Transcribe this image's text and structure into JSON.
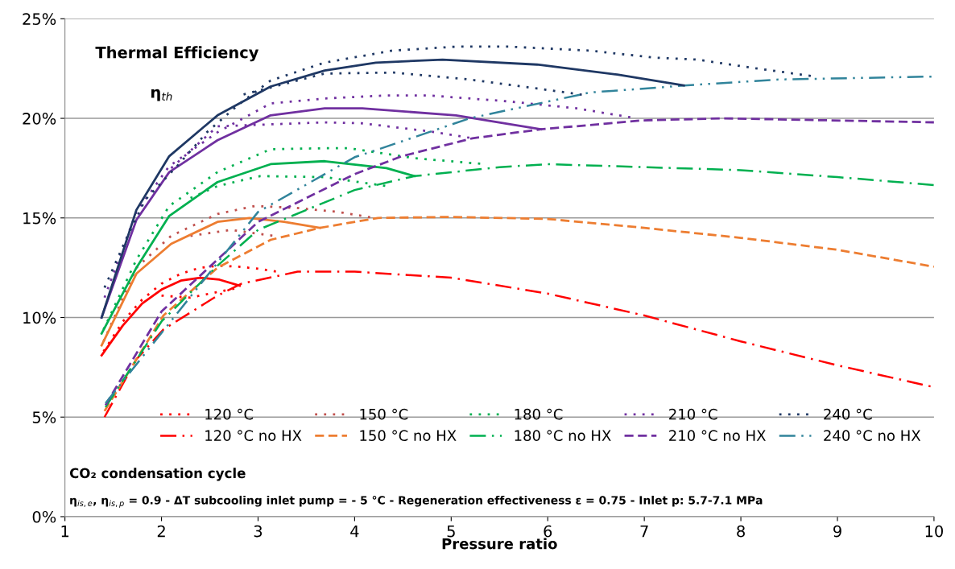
{
  "chart_data": {
    "type": "line",
    "title": "Thermal Efficiency",
    "subtitle": "η$_{th}$",
    "xlabel": "Pressure ratio",
    "xlim": [
      1,
      10
    ],
    "xticks": [
      1,
      2,
      3,
      4,
      5,
      6,
      7,
      8,
      9,
      10
    ],
    "ylim": [
      0,
      25
    ],
    "yticks": [
      {
        "value": 0,
        "label": "0%"
      },
      {
        "value": 5,
        "label": "5%"
      },
      {
        "value": 10,
        "label": "10%"
      },
      {
        "value": 15,
        "label": "15%"
      },
      {
        "value": 20,
        "label": "20%"
      },
      {
        "value": 25,
        "label": "25%"
      }
    ],
    "grid": "y",
    "legend": "bottom",
    "annotations": [
      "CO₂ condensation cycle",
      "η$_{is,e}$, η$_{is,p}$ = 0.9 - ΔT subcooling inlet pump = - 5 °C - Regeneration effectiveness ε = 0.75 - Inlet p: 5.7-7.1 MPa"
    ],
    "series": [
      {
        "name": "120 °C",
        "color": "#ff0000",
        "line_style": "dotted",
        "x": [
          1.4,
          1.6,
          1.8,
          2.0,
          2.2,
          2.4,
          2.6,
          2.8,
          3.0,
          3.2,
          null,
          2.0,
          2.3,
          2.5,
          2.8
        ],
        "values": [
          8.3,
          9.8,
          10.9,
          11.7,
          12.2,
          12.5,
          12.6,
          12.55,
          12.45,
          12.3,
          null,
          11.1,
          11.0,
          11.2,
          11.5
        ]
      },
      {
        "name": "120 °C no HX",
        "color": "#ff0000",
        "line_style": "dashdot",
        "x": [
          1.41,
          1.74,
          2.02,
          2.58,
          2.83,
          3.41,
          4.0,
          5,
          6,
          7,
          8,
          9,
          10
        ],
        "values": [
          5.0,
          7.9,
          9.4,
          11.1,
          11.7,
          12.3,
          12.3,
          12.0,
          11.2,
          10.1,
          8.8,
          7.6,
          6.5
        ]
      },
      {
        "color": "#ff0000",
        "line_style": "solid",
        "x": [
          1.38,
          1.6,
          1.8,
          2.0,
          2.2,
          2.4,
          2.6,
          2.81
        ],
        "values": [
          8.1,
          9.6,
          10.7,
          11.4,
          11.85,
          12.0,
          11.9,
          11.6
        ]
      },
      {
        "name": "150 °C",
        "color": "#c0504d",
        "line_style": "dotted",
        "x": [
          1.4,
          1.74,
          2.1,
          2.58,
          2.97,
          3.4,
          3.83,
          4.2,
          null,
          2.3,
          2.72,
          3.16
        ],
        "values": [
          8.8,
          12.5,
          14.1,
          15.2,
          15.6,
          15.5,
          15.3,
          15.0,
          null,
          14.1,
          14.4,
          14.1
        ]
      },
      {
        "name": "150 °C no HX",
        "color": "#ed7d31",
        "line_style": "dashed",
        "x": [
          1.41,
          2.02,
          2.58,
          3.13,
          3.64,
          4.24,
          5,
          6,
          7,
          8,
          9,
          10
        ],
        "values": [
          5.3,
          10.1,
          12.5,
          13.9,
          14.5,
          15.0,
          15.05,
          14.95,
          14.5,
          14.0,
          13.4,
          12.55
        ]
      },
      {
        "color": "#ed7d31",
        "line_style": "solid",
        "x": [
          1.38,
          1.74,
          2.1,
          2.58,
          2.91,
          3.27,
          3.64
        ],
        "values": [
          8.6,
          12.2,
          13.7,
          14.8,
          15.0,
          14.8,
          14.5
        ]
      },
      {
        "name": "180 °C",
        "color": "#00b050",
        "line_style": "dotted",
        "x": [
          1.4,
          1.74,
          2.08,
          2.58,
          3.13,
          3.69,
          3.94,
          4.62,
          5.35,
          null,
          2.3,
          2.58,
          3.02,
          3.69,
          4.33
        ],
        "values": [
          9.4,
          12.9,
          15.6,
          17.3,
          18.45,
          18.5,
          18.5,
          18.0,
          17.7,
          null,
          16.0,
          16.6,
          17.1,
          17.05,
          16.6
        ]
      },
      {
        "name": "180 °C no HX",
        "color": "#00b050",
        "line_style": "dashdot",
        "x": [
          1.42,
          2.0,
          2.58,
          3.0,
          4.0,
          4.62,
          5.5,
          6,
          7,
          8,
          9,
          10
        ],
        "values": [
          5.5,
          9.8,
          12.6,
          14.4,
          16.4,
          17.1,
          17.55,
          17.7,
          17.55,
          17.4,
          17.05,
          16.65
        ]
      },
      {
        "color": "#00b050",
        "line_style": "solid",
        "x": [
          1.38,
          1.74,
          2.08,
          2.58,
          3.13,
          3.69,
          4.33,
          4.62
        ],
        "values": [
          9.2,
          12.5,
          15.1,
          16.8,
          17.7,
          17.85,
          17.5,
          17.1
        ]
      },
      {
        "name": "210 °C",
        "color": "#7030a0",
        "line_style": "dotted",
        "x": [
          1.41,
          1.74,
          2.08,
          2.58,
          3.13,
          3.69,
          4.33,
          4.77,
          5.6,
          6.3,
          6.86,
          null,
          2.1,
          2.58,
          3.69,
          4.08,
          4.77,
          5.22
        ],
        "values": [
          11.0,
          15.3,
          17.6,
          19.3,
          20.75,
          21.0,
          21.15,
          21.15,
          20.85,
          20.5,
          20.05,
          null,
          17.5,
          19.6,
          19.8,
          19.75,
          19.35,
          19.0
        ]
      },
      {
        "name": "210 °C no HX",
        "color": "#7030a0",
        "line_style": "dashed",
        "x": [
          1.42,
          2.0,
          3.0,
          4.0,
          4.49,
          5.22,
          5.93,
          6.99,
          7.83,
          10
        ],
        "values": [
          5.6,
          10.3,
          14.8,
          17.2,
          18.1,
          19.0,
          19.45,
          19.9,
          20.0,
          19.8
        ]
      },
      {
        "color": "#7030a0",
        "line_style": "solid",
        "x": [
          1.38,
          1.74,
          2.08,
          2.58,
          3.13,
          3.69,
          4.08,
          5.05,
          5.93
        ],
        "values": [
          10.0,
          14.9,
          17.3,
          18.9,
          20.15,
          20.5,
          20.5,
          20.15,
          19.45
        ]
      },
      {
        "name": "240 °C",
        "color": "#1f3864",
        "line_style": "dotted",
        "x": [
          1.41,
          1.63,
          1.83,
          2.18,
          2.47,
          2.8,
          3.13,
          3.69,
          4.39,
          5.05,
          5.6,
          6.44,
          7.1,
          7.55,
          8.1,
          8.77,
          null,
          2.85,
          3.69,
          4.41,
          5.19,
          5.89,
          6.41
        ],
        "values": [
          11.5,
          13.9,
          15.9,
          17.7,
          19.3,
          20.7,
          21.9,
          22.8,
          23.4,
          23.6,
          23.6,
          23.4,
          23.05,
          22.95,
          22.55,
          22.1,
          null,
          21.2,
          22.25,
          22.3,
          21.95,
          21.5,
          21.15
        ]
      },
      {
        "name": "240 °C no HX",
        "color": "#31849b",
        "line_style": "dashdotdot",
        "x": [
          1.42,
          3.0,
          4.0,
          4.22,
          5.19,
          6.44,
          7.15,
          7.41,
          8.39,
          10
        ],
        "values": [
          5.7,
          15.3,
          18.05,
          18.4,
          20.0,
          21.3,
          21.55,
          21.65,
          21.95,
          22.1
        ]
      },
      {
        "color": "#1f3864",
        "line_style": "solid",
        "x": [
          1.38,
          1.74,
          2.08,
          2.58,
          3.13,
          3.69,
          4.22,
          4.91,
          5.89,
          6.72,
          7.41
        ],
        "values": [
          10.0,
          15.4,
          18.1,
          20.15,
          21.6,
          22.4,
          22.8,
          22.95,
          22.7,
          22.2,
          21.65
        ]
      }
    ]
  }
}
